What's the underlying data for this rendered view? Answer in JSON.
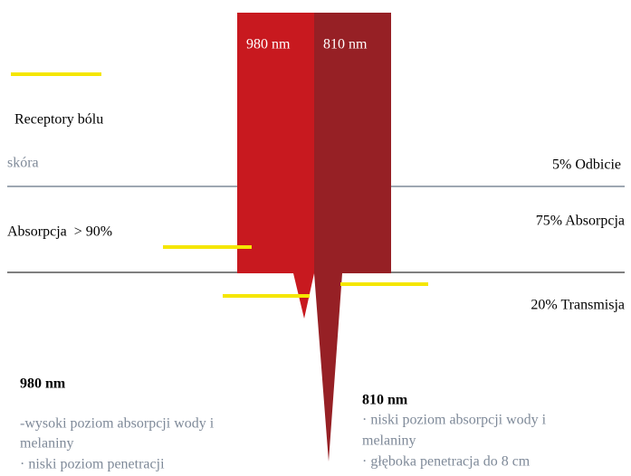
{
  "beam_labels": [
    "980 nm",
    "810 nm"
  ],
  "pain_receptors": "Receptory bólu",
  "skin": "skóra",
  "left_absorption": "Absorpcja  > 90%",
  "reflection": "5% Odbicie",
  "right_absorption": "75% Absorpcja",
  "transmission": "20% Transmisja",
  "notes": [
    {
      "title": "980 nm",
      "lines": [
        "-wysoki poziom absorpcji wody i",
        "melaniny",
        "· niski poziom penetracji"
      ]
    },
    {
      "title": "810 nm",
      "lines": [
        "· niski poziom absorpcji wody i",
        "melaniny",
        "· głęboka penetracja do 8 cm"
      ]
    }
  ]
}
